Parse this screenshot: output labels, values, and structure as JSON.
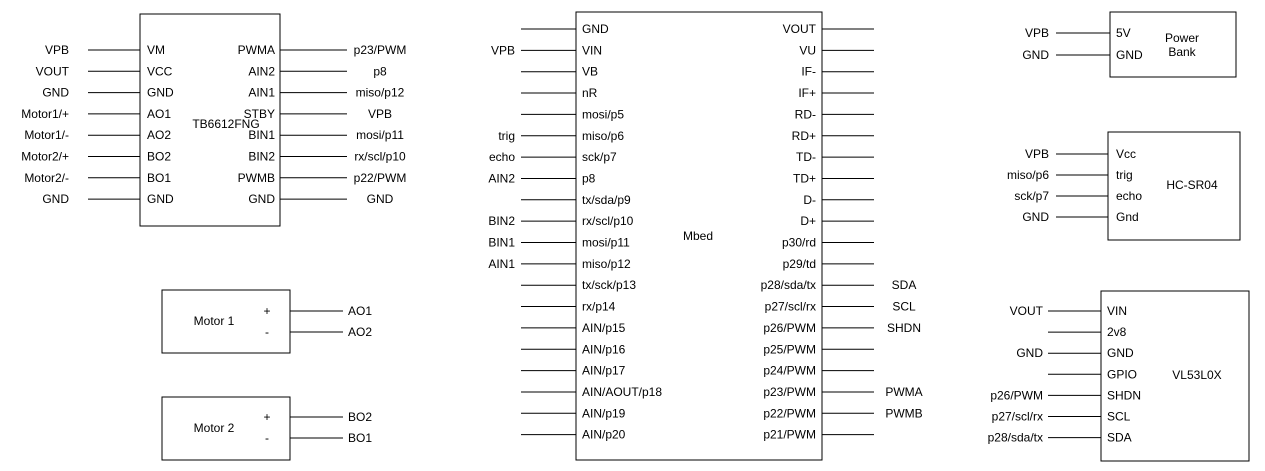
{
  "diagram": {
    "components": [
      {
        "id": "tb6612",
        "label": "TB6612FNG",
        "left_pins": [
          {
            "pin": "VM",
            "net": "VPB"
          },
          {
            "pin": "VCC",
            "net": "VOUT"
          },
          {
            "pin": "GND",
            "net": "GND"
          },
          {
            "pin": "AO1",
            "net": "Motor1/+"
          },
          {
            "pin": "AO2",
            "net": "Motor1/-"
          },
          {
            "pin": "BO2",
            "net": "Motor2/+"
          },
          {
            "pin": "BO1",
            "net": "Motor2/-"
          },
          {
            "pin": "GND",
            "net": "GND"
          }
        ],
        "right_pins": [
          {
            "pin": "PWMA",
            "net": "p23/PWM"
          },
          {
            "pin": "AIN2",
            "net": "p8"
          },
          {
            "pin": "AIN1",
            "net": "miso/p12"
          },
          {
            "pin": "STBY",
            "net": "VPB"
          },
          {
            "pin": "BIN1",
            "net": "mosi/p11"
          },
          {
            "pin": "BIN2",
            "net": "rx/scl/p10"
          },
          {
            "pin": "PWMB",
            "net": "p22/PWM"
          },
          {
            "pin": "GND",
            "net": "GND"
          }
        ]
      },
      {
        "id": "motor1",
        "label": "Motor 1",
        "right_pins": [
          {
            "pin": "+",
            "net": "AO1"
          },
          {
            "pin": "-",
            "net": "AO2"
          }
        ]
      },
      {
        "id": "motor2",
        "label": "Motor 2",
        "right_pins": [
          {
            "pin": "+",
            "net": "BO2"
          },
          {
            "pin": "-",
            "net": "BO1"
          }
        ]
      },
      {
        "id": "mbed",
        "label": "Mbed",
        "left_pins": [
          {
            "pin": "GND",
            "net": ""
          },
          {
            "pin": "VIN",
            "net": "VPB"
          },
          {
            "pin": "VB",
            "net": ""
          },
          {
            "pin": "nR",
            "net": ""
          },
          {
            "pin": "mosi/p5",
            "net": ""
          },
          {
            "pin": "miso/p6",
            "net": "trig"
          },
          {
            "pin": "sck/p7",
            "net": "echo"
          },
          {
            "pin": "p8",
            "net": "AIN2"
          },
          {
            "pin": "tx/sda/p9",
            "net": ""
          },
          {
            "pin": "rx/scl/p10",
            "net": "BIN2"
          },
          {
            "pin": "mosi/p11",
            "net": "BIN1"
          },
          {
            "pin": "miso/p12",
            "net": "AIN1"
          },
          {
            "pin": "tx/sck/p13",
            "net": ""
          },
          {
            "pin": "rx/p14",
            "net": ""
          },
          {
            "pin": "AIN/p15",
            "net": ""
          },
          {
            "pin": "AIN/p16",
            "net": ""
          },
          {
            "pin": "AIN/p17",
            "net": ""
          },
          {
            "pin": "AIN/AOUT/p18",
            "net": ""
          },
          {
            "pin": "AIN/p19",
            "net": ""
          },
          {
            "pin": "AIN/p20",
            "net": ""
          }
        ],
        "right_pins": [
          {
            "pin": "VOUT",
            "net": ""
          },
          {
            "pin": "VU",
            "net": ""
          },
          {
            "pin": "IF-",
            "net": ""
          },
          {
            "pin": "IF+",
            "net": ""
          },
          {
            "pin": "RD-",
            "net": ""
          },
          {
            "pin": "RD+",
            "net": ""
          },
          {
            "pin": "TD-",
            "net": ""
          },
          {
            "pin": "TD+",
            "net": ""
          },
          {
            "pin": "D-",
            "net": ""
          },
          {
            "pin": "D+",
            "net": ""
          },
          {
            "pin": "p30/rd",
            "net": ""
          },
          {
            "pin": "p29/td",
            "net": ""
          },
          {
            "pin": "p28/sda/tx",
            "net": "SDA"
          },
          {
            "pin": "p27/scl/rx",
            "net": "SCL"
          },
          {
            "pin": "p26/PWM",
            "net": "SHDN"
          },
          {
            "pin": "p25/PWM",
            "net": ""
          },
          {
            "pin": "p24/PWM",
            "net": ""
          },
          {
            "pin": "p23/PWM",
            "net": "PWMA"
          },
          {
            "pin": "p22/PWM",
            "net": "PWMB"
          },
          {
            "pin": "p21/PWM",
            "net": ""
          }
        ]
      },
      {
        "id": "powerbank",
        "label_lines": [
          "Power",
          "Bank"
        ],
        "left_pins": [
          {
            "pin": "5V",
            "net": "VPB"
          },
          {
            "pin": "GND",
            "net": "GND"
          }
        ]
      },
      {
        "id": "hcsr04",
        "label": "HC-SR04",
        "left_pins": [
          {
            "pin": "Vcc",
            "net": "VPB"
          },
          {
            "pin": "trig",
            "net": "miso/p6"
          },
          {
            "pin": "echo",
            "net": "sck/p7"
          },
          {
            "pin": "Gnd",
            "net": "GND"
          }
        ]
      },
      {
        "id": "vl53l0x",
        "label": "VL53L0X",
        "left_pins": [
          {
            "pin": "VIN",
            "net": "VOUT"
          },
          {
            "pin": "2v8",
            "net": ""
          },
          {
            "pin": "GND",
            "net": "GND"
          },
          {
            "pin": "GPIO",
            "net": ""
          },
          {
            "pin": "SHDN",
            "net": "p26/PWM"
          },
          {
            "pin": "SCL",
            "net": "p27/scl/rx"
          },
          {
            "pin": "SDA",
            "net": "p28/sda/tx"
          }
        ]
      }
    ]
  }
}
